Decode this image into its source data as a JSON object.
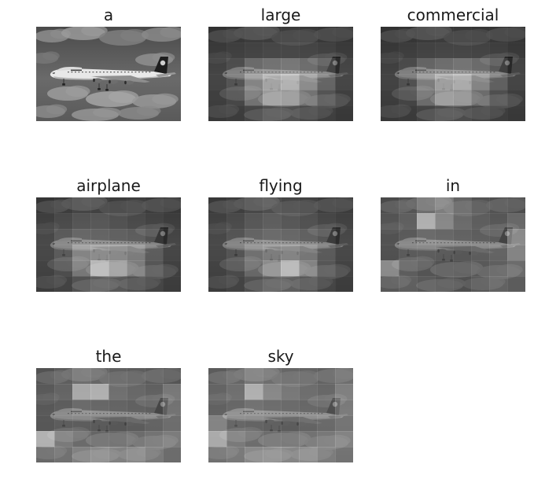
{
  "figure": {
    "panels": [
      {
        "word": "a",
        "attention": null
      },
      {
        "word": "large",
        "attention": [
          [
            0.1,
            0.12,
            0.14,
            0.14,
            0.15,
            0.14,
            0.12,
            0.1
          ],
          [
            0.12,
            0.15,
            0.18,
            0.2,
            0.2,
            0.19,
            0.16,
            0.12
          ],
          [
            0.14,
            0.22,
            0.4,
            0.45,
            0.48,
            0.42,
            0.3,
            0.16
          ],
          [
            0.14,
            0.24,
            0.55,
            0.75,
            0.85,
            0.6,
            0.35,
            0.15
          ],
          [
            0.12,
            0.18,
            0.45,
            0.7,
            0.65,
            0.45,
            0.25,
            0.12
          ],
          [
            0.1,
            0.12,
            0.18,
            0.25,
            0.25,
            0.2,
            0.14,
            0.1
          ]
        ]
      },
      {
        "word": "commercial",
        "attention": [
          [
            0.1,
            0.11,
            0.13,
            0.14,
            0.14,
            0.13,
            0.12,
            0.1
          ],
          [
            0.11,
            0.14,
            0.17,
            0.19,
            0.19,
            0.18,
            0.15,
            0.11
          ],
          [
            0.13,
            0.2,
            0.36,
            0.42,
            0.46,
            0.4,
            0.28,
            0.15
          ],
          [
            0.13,
            0.22,
            0.5,
            0.72,
            0.8,
            0.55,
            0.32,
            0.14
          ],
          [
            0.11,
            0.16,
            0.4,
            0.65,
            0.6,
            0.4,
            0.22,
            0.11
          ],
          [
            0.1,
            0.11,
            0.16,
            0.22,
            0.22,
            0.18,
            0.13,
            0.1
          ]
        ]
      },
      {
        "word": "airplane",
        "attention": [
          [
            0.12,
            0.15,
            0.2,
            0.18,
            0.16,
            0.18,
            0.15,
            0.12
          ],
          [
            0.15,
            0.22,
            0.28,
            0.3,
            0.26,
            0.22,
            0.18,
            0.14
          ],
          [
            0.18,
            0.3,
            0.38,
            0.36,
            0.34,
            0.32,
            0.24,
            0.16
          ],
          [
            0.16,
            0.28,
            0.55,
            0.6,
            0.58,
            0.5,
            0.3,
            0.15
          ],
          [
            0.14,
            0.22,
            0.48,
            0.88,
            0.7,
            0.5,
            0.26,
            0.13
          ],
          [
            0.12,
            0.16,
            0.25,
            0.32,
            0.3,
            0.24,
            0.18,
            0.12
          ]
        ]
      },
      {
        "word": "flying",
        "attention": [
          [
            0.14,
            0.16,
            0.22,
            0.25,
            0.22,
            0.2,
            0.16,
            0.14
          ],
          [
            0.16,
            0.22,
            0.3,
            0.34,
            0.3,
            0.26,
            0.2,
            0.16
          ],
          [
            0.18,
            0.26,
            0.36,
            0.4,
            0.38,
            0.34,
            0.26,
            0.18
          ],
          [
            0.16,
            0.24,
            0.42,
            0.5,
            0.55,
            0.46,
            0.28,
            0.16
          ],
          [
            0.14,
            0.2,
            0.38,
            0.6,
            0.85,
            0.55,
            0.26,
            0.14
          ],
          [
            0.12,
            0.16,
            0.24,
            0.32,
            0.34,
            0.28,
            0.18,
            0.12
          ]
        ]
      },
      {
        "word": "in",
        "attention": [
          [
            0.25,
            0.3,
            0.45,
            0.55,
            0.4,
            0.3,
            0.28,
            0.25
          ],
          [
            0.28,
            0.35,
            0.85,
            0.6,
            0.42,
            0.34,
            0.3,
            0.4
          ],
          [
            0.24,
            0.3,
            0.4,
            0.38,
            0.35,
            0.32,
            0.3,
            0.6
          ],
          [
            0.22,
            0.28,
            0.3,
            0.28,
            0.26,
            0.3,
            0.34,
            0.55
          ],
          [
            0.6,
            0.32,
            0.26,
            0.24,
            0.22,
            0.28,
            0.32,
            0.4
          ],
          [
            0.3,
            0.34,
            0.3,
            0.26,
            0.24,
            0.3,
            0.36,
            0.32
          ]
        ]
      },
      {
        "word": "the",
        "attention": [
          [
            0.3,
            0.35,
            0.45,
            0.4,
            0.38,
            0.36,
            0.34,
            0.3
          ],
          [
            0.32,
            0.38,
            0.8,
            0.85,
            0.45,
            0.4,
            0.36,
            0.5
          ],
          [
            0.28,
            0.32,
            0.4,
            0.38,
            0.36,
            0.34,
            0.32,
            0.45
          ],
          [
            0.26,
            0.3,
            0.3,
            0.28,
            0.26,
            0.3,
            0.34,
            0.4
          ],
          [
            0.85,
            0.5,
            0.4,
            0.36,
            0.34,
            0.4,
            0.45,
            0.5
          ],
          [
            0.4,
            0.45,
            0.55,
            0.6,
            0.55,
            0.6,
            0.5,
            0.42
          ]
        ]
      },
      {
        "word": "sky",
        "attention": [
          [
            0.35,
            0.4,
            0.5,
            0.45,
            0.42,
            0.4,
            0.38,
            0.45
          ],
          [
            0.38,
            0.45,
            0.85,
            0.6,
            0.5,
            0.44,
            0.4,
            0.55
          ],
          [
            0.34,
            0.38,
            0.45,
            0.42,
            0.4,
            0.38,
            0.36,
            0.5
          ],
          [
            0.55,
            0.36,
            0.34,
            0.32,
            0.3,
            0.34,
            0.38,
            0.45
          ],
          [
            0.8,
            0.5,
            0.42,
            0.4,
            0.38,
            0.44,
            0.48,
            0.55
          ],
          [
            0.45,
            0.5,
            0.6,
            0.62,
            0.58,
            0.62,
            0.52,
            0.46
          ]
        ]
      }
    ]
  }
}
